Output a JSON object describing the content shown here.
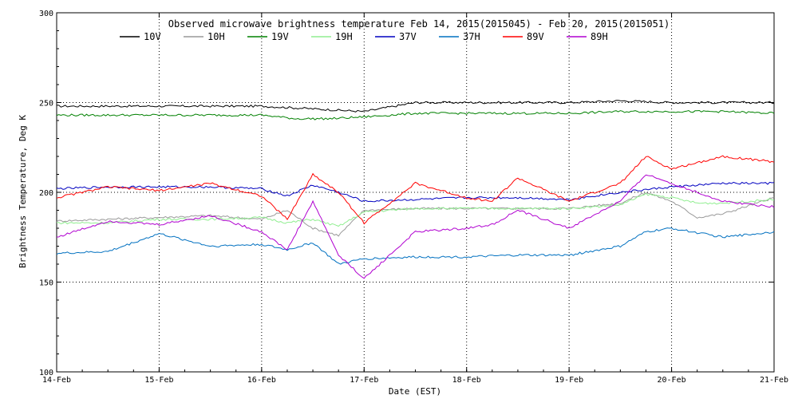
{
  "chart_data": {
    "type": "line",
    "title": "Observed microwave brightness temperature Feb 14, 2015(2015045) - Feb 20, 2015(2015051)",
    "xlabel": "Date (EST)",
    "ylabel": "Brightness Temperature, Deg K",
    "xlim": [
      "2015-02-14",
      "2015-02-21"
    ],
    "ylim": [
      100,
      300
    ],
    "x_ticks": [
      "14-Feb",
      "15-Feb",
      "16-Feb",
      "17-Feb",
      "18-Feb",
      "19-Feb",
      "20-Feb",
      "21-Feb"
    ],
    "y_ticks": [
      100,
      150,
      200,
      250,
      300
    ],
    "grid": {
      "vertical": "dotted, at each day tick",
      "horizontal": "dotted, at 150, 200, 250"
    },
    "legend": "top, one row",
    "series": [
      {
        "name": "10V",
        "color": "#000000",
        "x": [
          "2015-02-14",
          "2015-02-14T12:00",
          "2015-02-15",
          "2015-02-15T12:00",
          "2015-02-16",
          "2015-02-16T08:00",
          "2015-02-16T16:00",
          "2015-02-17",
          "2015-02-17T12:00",
          "2015-02-18",
          "2015-02-18T12:00",
          "2015-02-19",
          "2015-02-19T12:00",
          "2015-02-20",
          "2015-02-20T12:00",
          "2015-02-21"
        ],
        "y": [
          248,
          248,
          248,
          248,
          248,
          247,
          246,
          245,
          250,
          250,
          250,
          250,
          251,
          250,
          250,
          250
        ]
      },
      {
        "name": "10H",
        "color": "#999999",
        "x": [
          "2015-02-14",
          "2015-02-14T12:00",
          "2015-02-15",
          "2015-02-15T12:00",
          "2015-02-16",
          "2015-02-16T06:00",
          "2015-02-16T12:00",
          "2015-02-16T18:00",
          "2015-02-17",
          "2015-02-17T12:00",
          "2015-02-18",
          "2015-02-18T12:00",
          "2015-02-19",
          "2015-02-19T12:00",
          "2015-02-19T18:00",
          "2015-02-20",
          "2015-02-20T06:00",
          "2015-02-20T12:00",
          "2015-02-21"
        ],
        "y": [
          184,
          185,
          186,
          187,
          185,
          190,
          180,
          176,
          190,
          191,
          191,
          191,
          191,
          194,
          200,
          195,
          186,
          188,
          197
        ]
      },
      {
        "name": "19V",
        "color": "#008000",
        "x": [
          "2015-02-14",
          "2015-02-14T12:00",
          "2015-02-15",
          "2015-02-15T12:00",
          "2015-02-16",
          "2015-02-16T08:00",
          "2015-02-16T16:00",
          "2015-02-17",
          "2015-02-17T12:00",
          "2015-02-18",
          "2015-02-18T12:00",
          "2015-02-19",
          "2015-02-19T12:00",
          "2015-02-20",
          "2015-02-20T12:00",
          "2015-02-21"
        ],
        "y": [
          243,
          243,
          243,
          243,
          243,
          241,
          241,
          242,
          244,
          244,
          244,
          244,
          245,
          245,
          245,
          244
        ]
      },
      {
        "name": "19H",
        "color": "#90ee90",
        "x": [
          "2015-02-14",
          "2015-02-14T12:00",
          "2015-02-15",
          "2015-02-15T12:00",
          "2015-02-16",
          "2015-02-16T06:00",
          "2015-02-16T12:00",
          "2015-02-16T18:00",
          "2015-02-17",
          "2015-02-17T12:00",
          "2015-02-18",
          "2015-02-18T12:00",
          "2015-02-19",
          "2015-02-19T12:00",
          "2015-02-19T18:00",
          "2015-02-20",
          "2015-02-20T06:00",
          "2015-02-20T12:00",
          "2015-02-21"
        ],
        "y": [
          183,
          183,
          185,
          185,
          186,
          183,
          185,
          181,
          189,
          191,
          191,
          191,
          191,
          193,
          199,
          197,
          194,
          194,
          196
        ]
      },
      {
        "name": "37V",
        "color": "#0000c0",
        "x": [
          "2015-02-14",
          "2015-02-14T12:00",
          "2015-02-15",
          "2015-02-15T12:00",
          "2015-02-16",
          "2015-02-16T06:00",
          "2015-02-16T12:00",
          "2015-02-16T18:00",
          "2015-02-17",
          "2015-02-17T12:00",
          "2015-02-18",
          "2015-02-18T12:00",
          "2015-02-19",
          "2015-02-19T12:00",
          "2015-02-20",
          "2015-02-20T12:00",
          "2015-02-21"
        ],
        "y": [
          202,
          203,
          203,
          203,
          202,
          198,
          204,
          200,
          195,
          196,
          197,
          197,
          196,
          200,
          203,
          205,
          205
        ]
      },
      {
        "name": "37H",
        "color": "#0070c0",
        "x": [
          "2015-02-14",
          "2015-02-14T12:00",
          "2015-02-15",
          "2015-02-15T12:00",
          "2015-02-16",
          "2015-02-16T06:00",
          "2015-02-16T12:00",
          "2015-02-16T18:00",
          "2015-02-17",
          "2015-02-17T12:00",
          "2015-02-18",
          "2015-02-18T12:00",
          "2015-02-19",
          "2015-02-19T12:00",
          "2015-02-19T18:00",
          "2015-02-20",
          "2015-02-20T12:00",
          "2015-02-21"
        ],
        "y": [
          166,
          167,
          177,
          170,
          171,
          168,
          172,
          160,
          163,
          164,
          164,
          165,
          165,
          170,
          178,
          180,
          175,
          178
        ]
      },
      {
        "name": "89V",
        "color": "#ff0000",
        "x": [
          "2015-02-14",
          "2015-02-14T12:00",
          "2015-02-15",
          "2015-02-15T12:00",
          "2015-02-16",
          "2015-02-16T06:00",
          "2015-02-16T12:00",
          "2015-02-16T18:00",
          "2015-02-17",
          "2015-02-17T12:00",
          "2015-02-18",
          "2015-02-18T06:00",
          "2015-02-18T12:00",
          "2015-02-19",
          "2015-02-19T12:00",
          "2015-02-19T18:00",
          "2015-02-20",
          "2015-02-20T12:00",
          "2015-02-21"
        ],
        "y": [
          197,
          203,
          201,
          205,
          198,
          185,
          210,
          200,
          183,
          205,
          197,
          195,
          208,
          195,
          205,
          220,
          213,
          220,
          217
        ]
      },
      {
        "name": "89H",
        "color": "#b000d0",
        "x": [
          "2015-02-14",
          "2015-02-14T12:00",
          "2015-02-15",
          "2015-02-15T12:00",
          "2015-02-16",
          "2015-02-16T06:00",
          "2015-02-16T12:00",
          "2015-02-16T18:00",
          "2015-02-17",
          "2015-02-17T12:00",
          "2015-02-18",
          "2015-02-18T06:00",
          "2015-02-18T12:00",
          "2015-02-19",
          "2015-02-19T12:00",
          "2015-02-19T18:00",
          "2015-02-20",
          "2015-02-20T12:00",
          "2015-02-21"
        ],
        "y": [
          175,
          184,
          182,
          187,
          178,
          168,
          195,
          165,
          152,
          178,
          180,
          182,
          190,
          180,
          195,
          210,
          205,
          195,
          192
        ]
      }
    ]
  }
}
